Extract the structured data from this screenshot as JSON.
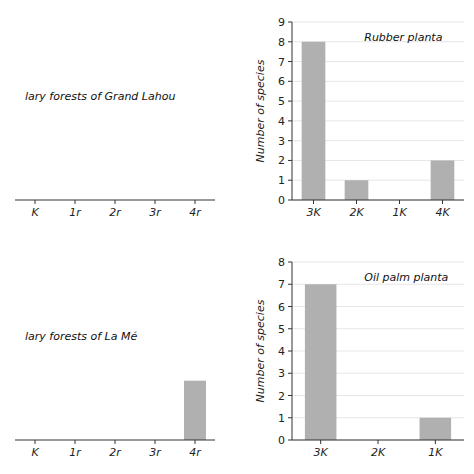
{
  "chart_data": [
    {
      "type": "bar",
      "title": "lary forests of Grand Lahou",
      "categories": [
        "K",
        "1r",
        "2r",
        "3r",
        "4r"
      ],
      "values": [
        0,
        0,
        0,
        0,
        0
      ],
      "color": "#b0b0b0",
      "ylim": [
        0,
        9
      ],
      "tick_labels": "x"
    },
    {
      "type": "bar",
      "title": "Rubber planta",
      "categories": [
        "3K",
        "2K",
        "1K",
        "4K"
      ],
      "values": [
        8,
        1,
        0,
        2
      ],
      "y_label": "Number of species",
      "color": "#b0b0b0",
      "ylim": [
        0,
        9
      ],
      "yticks": [
        0,
        1,
        2,
        3,
        4,
        5,
        6,
        7,
        8,
        9
      ]
    },
    {
      "type": "bar",
      "title": "lary forests of La Mé",
      "categories": [
        "K",
        "1r",
        "2r",
        "3r",
        "4r"
      ],
      "values": [
        0,
        0,
        0,
        0,
        3
      ],
      "color": "#b0b0b0",
      "ylim": [
        0,
        9
      ],
      "tick_labels": "x"
    },
    {
      "type": "bar",
      "title": "Oil palm planta",
      "categories": [
        "3K",
        "2K",
        "1K"
      ],
      "values": [
        7,
        0,
        1
      ],
      "y_label": "Number of species",
      "color": "#b0b0b0",
      "ylim": [
        0,
        8
      ],
      "yticks": [
        0,
        1,
        2,
        3,
        4,
        5,
        6,
        7,
        8
      ]
    }
  ]
}
